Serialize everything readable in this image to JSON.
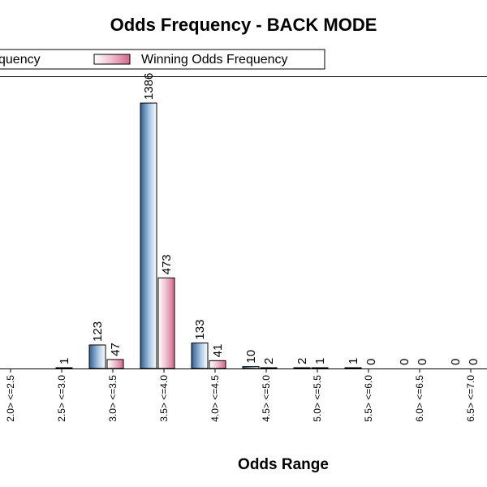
{
  "chart_data": {
    "type": "bar",
    "title": "Odds Frequency - BACK MODE",
    "xlabel": "Odds Range",
    "ylabel": "",
    "categories": [
      "2.0> <=2.5",
      "2.5> <=3.0",
      "3.0> <=3.5",
      "3.5> <=4.0",
      "4.0> <=4.5",
      "4.5> <=5.0",
      "5.0> <=5.5",
      "5.5> <=6.0",
      "6.0> <=6.5",
      "6.5> <=7.0"
    ],
    "series": [
      {
        "values": [
          null,
          123,
          1386,
          133,
          10,
          2,
          1,
          0,
          0,
          0
        ],
        "labels": [
          "",
          "123",
          "1386",
          "133",
          "10",
          "2",
          "1",
          "0",
          "0",
          "0"
        ]
      },
      {
        "name": "Winning Odds Frequency",
        "values": [
          1,
          47,
          473,
          41,
          2,
          1,
          0,
          0,
          0,
          0
        ],
        "labels": [
          "1",
          "47",
          "473",
          "41",
          "2",
          "1",
          "0",
          "0",
          "0",
          "0"
        ]
      }
    ],
    "ylim": [
      0,
      1386
    ],
    "grid": false,
    "legend_position": "top",
    "legend_visible_text": [
      "quency",
      "Winning Odds Frequency"
    ],
    "colors": {
      "series1_dark": "#3e6fa3",
      "series1_light": "#ffffff",
      "series2_dark": "#d87a98",
      "series2_light": "#ffffff",
      "border": "#000000"
    }
  }
}
